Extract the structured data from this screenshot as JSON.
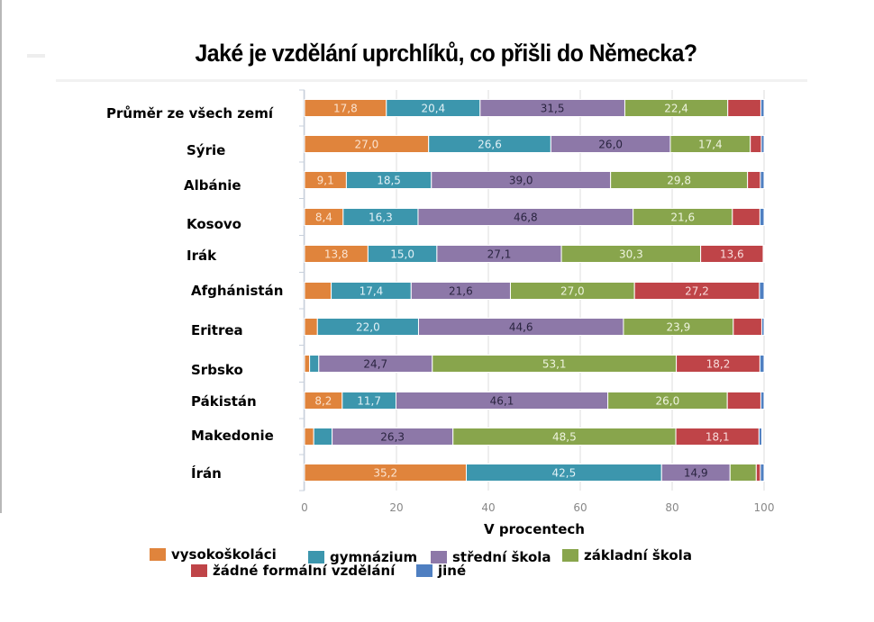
{
  "chart_data": {
    "type": "bar",
    "orientation": "horizontal",
    "stacked": true,
    "title": "Jaké je vzdělání uprchlíků, co přišli do Německa?",
    "xlabel": "V procentech",
    "ylabel": "",
    "xlim": [
      0,
      100
    ],
    "xticks": [
      "0",
      "20",
      "40",
      "60",
      "80",
      "100"
    ],
    "grid": true,
    "legend_position": "bottom",
    "categories": [
      "Průměr ze všech zemí",
      "Sýrie",
      "Albánie",
      "Kosovo",
      "Irák",
      "Afghánistán",
      "Eritrea",
      "Srbsko",
      "Pákistán",
      "Makedonie",
      "Írán"
    ],
    "series": [
      {
        "name": "vysokoškoláci",
        "color": "#e0843c",
        "label_color": "#fbe3cf",
        "values": [
          17.8,
          27.0,
          9.1,
          8.4,
          13.8,
          5.8,
          2.8,
          1.1,
          8.2,
          2.0,
          35.2
        ],
        "labels": [
          "17,8",
          "27,0",
          "9,1",
          "8,4",
          "13,8",
          "",
          "",
          "",
          "8,2",
          "",
          "35,2"
        ]
      },
      {
        "name": "gymnázium",
        "color": "#3c96ad",
        "label_color": "#e2f1f6",
        "values": [
          20.4,
          26.6,
          18.5,
          16.3,
          15.0,
          17.4,
          22.0,
          2.0,
          11.7,
          4.0,
          42.5
        ],
        "labels": [
          "20,4",
          "26,6",
          "18,5",
          "16,3",
          "15,0",
          "17,4",
          "22,0",
          "",
          "11,7",
          "",
          "42,5"
        ]
      },
      {
        "name": "střední škola",
        "color": "#8d78a8",
        "label_color": "#2a2440",
        "values": [
          31.5,
          26.0,
          39.0,
          46.8,
          27.1,
          21.6,
          44.6,
          24.7,
          46.1,
          26.3,
          14.9
        ],
        "labels": [
          "31,5",
          "26,0",
          "39,0",
          "46,8",
          "27,1",
          "21,6",
          "44,6",
          "24,7",
          "46,1",
          "26,3",
          "14,9"
        ]
      },
      {
        "name": "základní škola",
        "color": "#88a54c",
        "label_color": "#eef4df",
        "values": [
          22.4,
          17.4,
          29.8,
          21.6,
          30.3,
          27.0,
          23.9,
          53.1,
          26.0,
          48.5,
          5.7
        ],
        "labels": [
          "22,4",
          "17,4",
          "29,8",
          "21,6",
          "30,3",
          "27,0",
          "23,9",
          "53,1",
          "26,0",
          "48,5",
          ""
        ]
      },
      {
        "name": "žádné formální vzdělání",
        "color": "#bf4448",
        "label_color": "#f8dcdc",
        "values": [
          7.2,
          2.4,
          2.8,
          6.0,
          13.6,
          27.2,
          6.2,
          18.2,
          7.3,
          18.1,
          0.9
        ],
        "labels": [
          "",
          "",
          "",
          "",
          "13,6",
          "27,2",
          "",
          "18,2",
          "",
          "18,1",
          ""
        ]
      },
      {
        "name": "jiné",
        "color": "#4f7fc1",
        "label_color": "#ffffff",
        "values": [
          0.7,
          0.6,
          0.8,
          0.9,
          0.2,
          1.0,
          0.5,
          0.9,
          0.7,
          0.6,
          0.8
        ],
        "labels": [
          "",
          "",
          "",
          "",
          "",
          "",
          "",
          "",
          "",
          "",
          ""
        ]
      }
    ]
  }
}
